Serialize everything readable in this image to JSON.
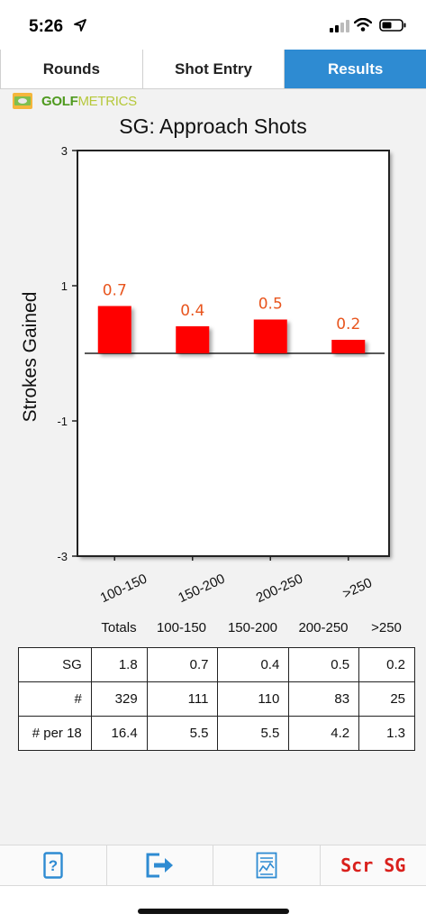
{
  "status": {
    "time": "5:26"
  },
  "tabs": [
    {
      "label": "Rounds",
      "active": false
    },
    {
      "label": "Shot Entry",
      "active": false
    },
    {
      "label": "Results",
      "active": true
    }
  ],
  "brand": {
    "name_bold": "GOLF",
    "name_thin": "METRICS"
  },
  "chart_data": {
    "type": "bar",
    "title": "SG: Approach Shots",
    "ylabel": "Strokes Gained",
    "xlabel": "",
    "categories": [
      "100-150",
      "150-200",
      "200-250",
      ">250"
    ],
    "values": [
      0.7,
      0.4,
      0.5,
      0.2
    ],
    "value_labels": [
      "0.7",
      "0.4",
      "0.5",
      "0.2"
    ],
    "ylim": [
      -3,
      3
    ],
    "yticks": [
      3,
      1,
      -1,
      -3
    ],
    "ytick_labels": [
      "3",
      "1",
      "-1",
      "-3"
    ],
    "bar_color": "#ff0000",
    "label_color": "#e8551e",
    "grid": false,
    "legend": "none"
  },
  "table": {
    "columns": [
      "Totals",
      "100-150",
      "150-200",
      "200-250",
      ">250"
    ],
    "rows": [
      {
        "label": "SG",
        "values": [
          "1.8",
          "0.7",
          "0.4",
          "0.5",
          "0.2"
        ]
      },
      {
        "label": "#",
        "values": [
          "329",
          "111",
          "110",
          "83",
          "25"
        ]
      },
      {
        "label": "# per 18",
        "values": [
          "16.4",
          "5.5",
          "5.5",
          "4.2",
          "1.3"
        ]
      }
    ]
  },
  "bottom_bar": {
    "items": [
      {
        "icon": "help-icon"
      },
      {
        "icon": "export-icon"
      },
      {
        "icon": "report-icon"
      },
      {
        "label": "Scr SG"
      }
    ]
  },
  "colors": {
    "accent": "#2e8bd2",
    "bar": "#ff0000",
    "scr_sg": "#d9201c"
  }
}
